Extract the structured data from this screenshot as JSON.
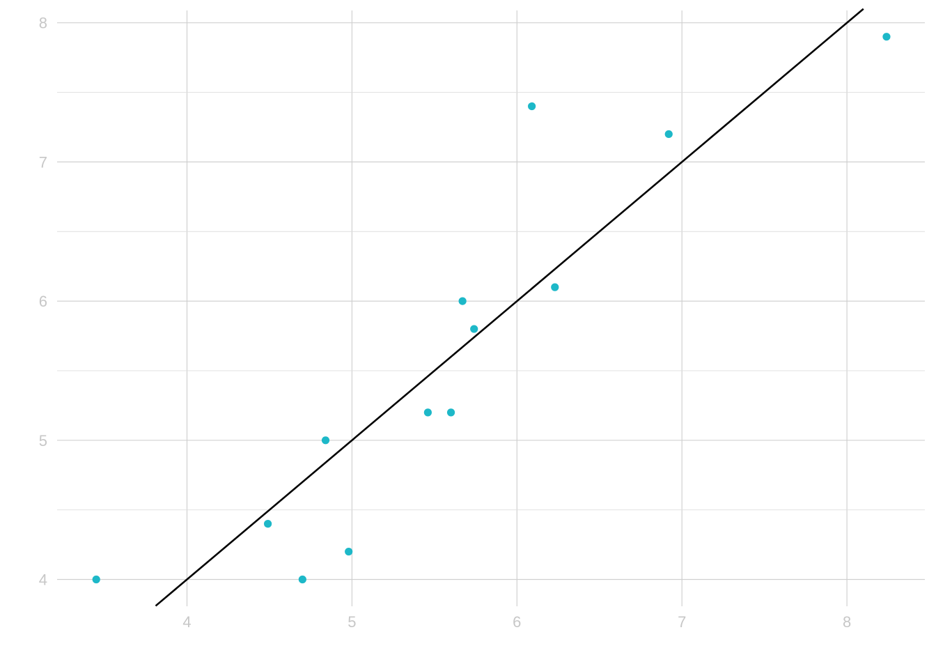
{
  "chart_data": {
    "type": "scatter",
    "title": "",
    "xlabel": "",
    "ylabel": "",
    "xlim": [
      3.3,
      8.5
    ],
    "ylim": [
      3.8,
      8.1
    ],
    "x_ticks": [
      4,
      5,
      6,
      7,
      8
    ],
    "y_ticks": [
      4,
      5,
      6,
      7,
      8
    ],
    "x_tick_labels": [
      "4",
      "5",
      "6",
      "7",
      "8"
    ],
    "y_tick_labels": [
      "4",
      "5",
      "6",
      "7",
      "8"
    ],
    "y_minor_ticks": [
      4.5,
      5.5,
      6.5,
      7.5
    ],
    "grid": true,
    "legend": "none",
    "point_color": "#1db8c8",
    "line_color": "#000000",
    "points": [
      {
        "x": 3.45,
        "y": 4.0
      },
      {
        "x": 4.49,
        "y": 4.4
      },
      {
        "x": 4.7,
        "y": 4.0
      },
      {
        "x": 4.84,
        "y": 5.0
      },
      {
        "x": 4.98,
        "y": 4.2
      },
      {
        "x": 5.46,
        "y": 5.2
      },
      {
        "x": 5.6,
        "y": 5.2
      },
      {
        "x": 5.67,
        "y": 6.0
      },
      {
        "x": 5.74,
        "y": 5.8
      },
      {
        "x": 6.09,
        "y": 7.4
      },
      {
        "x": 6.23,
        "y": 6.1
      },
      {
        "x": 6.92,
        "y": 7.2
      },
      {
        "x": 8.24,
        "y": 7.9
      }
    ],
    "reference_line": {
      "slope": 1,
      "intercept": 0,
      "x_start": 3.81,
      "x_end": 8.1
    }
  }
}
